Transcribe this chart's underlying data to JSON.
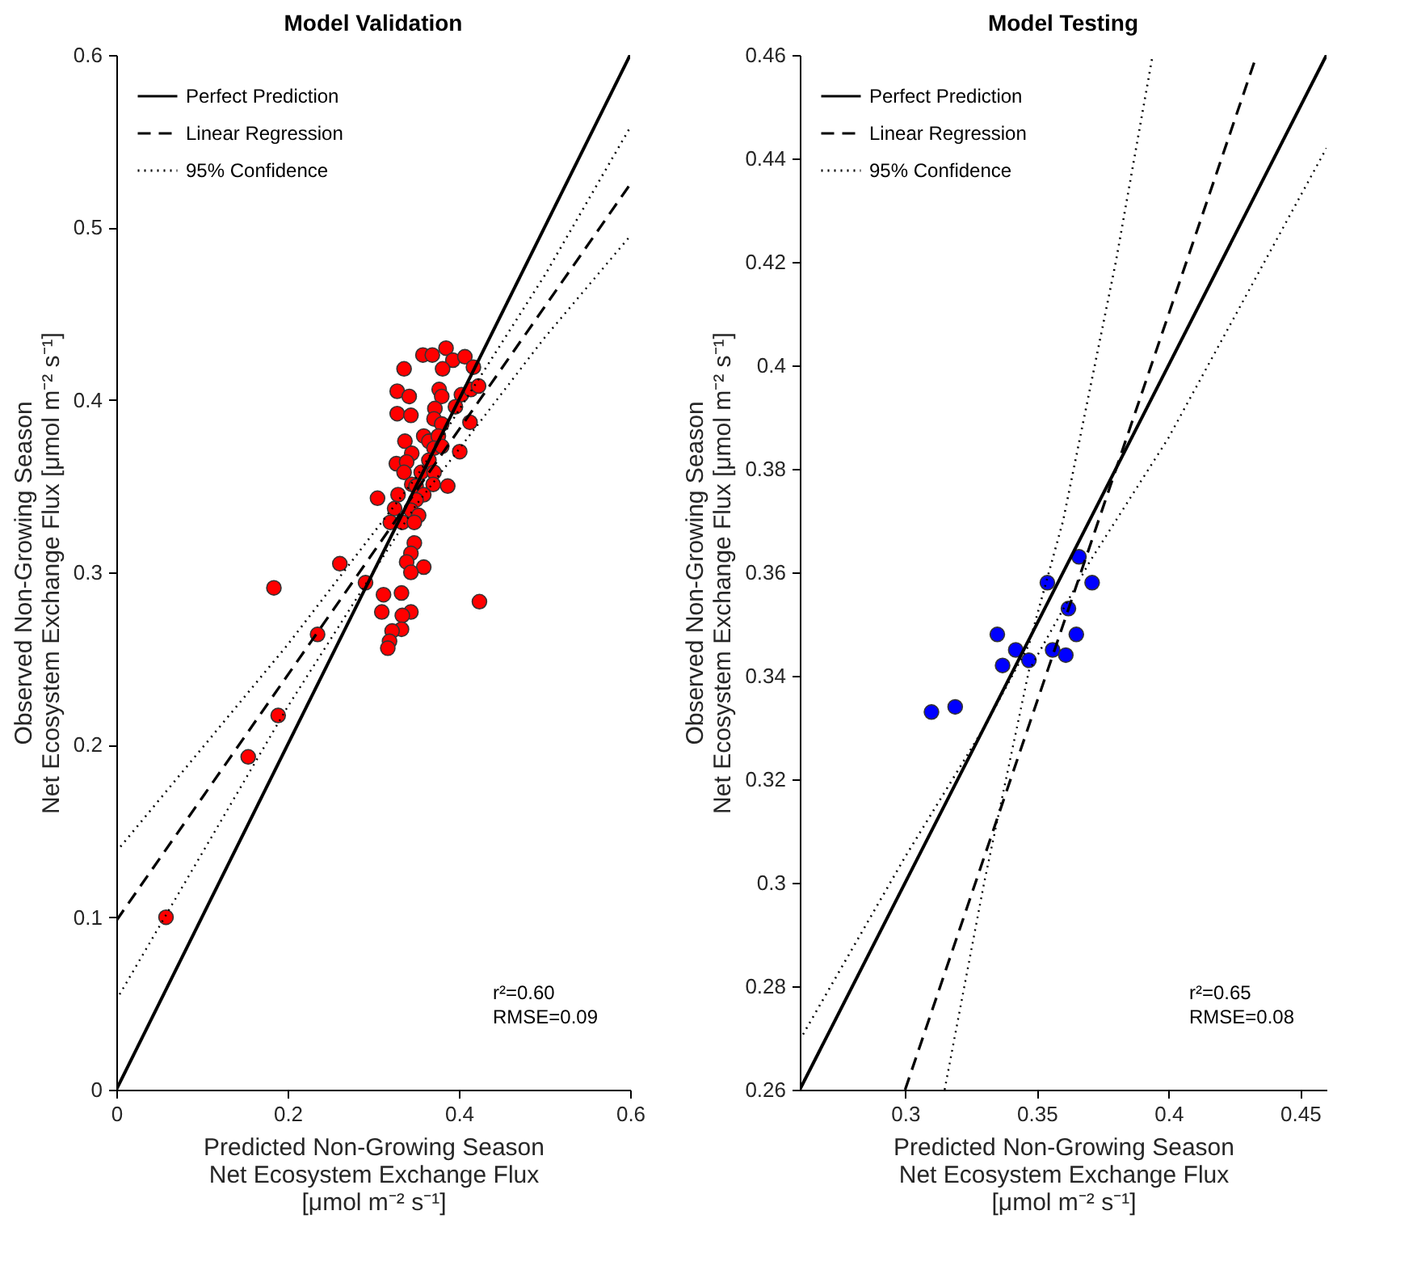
{
  "chart_data": [
    {
      "type": "scatter",
      "title": "Model Validation",
      "xlabel": "Predicted Non-Growing Season\nNet Ecosystem Exchange Flux\n[μmol m⁻² s⁻¹]",
      "ylabel": "Observed Non-Growing Season\nNet Ecosystem Exchange Flux [μmol m⁻² s⁻¹]",
      "xlim": [
        0,
        0.6
      ],
      "ylim": [
        0,
        0.6
      ],
      "xticks": [
        0,
        0.2,
        0.4,
        0.6
      ],
      "yticks": [
        0,
        0.1,
        0.2,
        0.3,
        0.4,
        0.5,
        0.6
      ],
      "legend": "top left",
      "annotations": [
        "r²=0.60",
        "RMSE=0.09"
      ],
      "series": [
        {
          "marker": "circle",
          "color": "#ff0000",
          "x": [
            0.358,
            0.369,
            0.385,
            0.393,
            0.407,
            0.381,
            0.336,
            0.417,
            0.328,
            0.342,
            0.377,
            0.38,
            0.403,
            0.414,
            0.423,
            0.328,
            0.344,
            0.372,
            0.396,
            0.371,
            0.38,
            0.413,
            0.337,
            0.359,
            0.365,
            0.376,
            0.371,
            0.38,
            0.345,
            0.401,
            0.327,
            0.339,
            0.336,
            0.365,
            0.356,
            0.371,
            0.345,
            0.35,
            0.37,
            0.387,
            0.359,
            0.305,
            0.329,
            0.35,
            0.325,
            0.344,
            0.353,
            0.32,
            0.334,
            0.348,
            0.348,
            0.344,
            0.339,
            0.359,
            0.344,
            0.261,
            0.291,
            0.312,
            0.333,
            0.31,
            0.344,
            0.334,
            0.424,
            0.333,
            0.322,
            0.319,
            0.317,
            0.184,
            0.235,
            0.189,
            0.154,
            0.058
          ],
          "values": [
            0.426,
            0.426,
            0.43,
            0.423,
            0.425,
            0.418,
            0.418,
            0.419,
            0.405,
            0.402,
            0.406,
            0.402,
            0.403,
            0.406,
            0.408,
            0.392,
            0.391,
            0.395,
            0.396,
            0.389,
            0.386,
            0.387,
            0.376,
            0.379,
            0.376,
            0.379,
            0.372,
            0.373,
            0.369,
            0.37,
            0.363,
            0.364,
            0.358,
            0.365,
            0.358,
            0.358,
            0.351,
            0.35,
            0.351,
            0.35,
            0.345,
            0.343,
            0.345,
            0.342,
            0.337,
            0.336,
            0.333,
            0.329,
            0.329,
            0.329,
            0.317,
            0.311,
            0.306,
            0.303,
            0.3,
            0.305,
            0.294,
            0.287,
            0.288,
            0.277,
            0.277,
            0.275,
            0.283,
            0.267,
            0.266,
            0.26,
            0.256,
            0.291,
            0.264,
            0.217,
            0.193,
            0.1
          ]
        },
        {
          "type": "line",
          "name": "Perfect Prediction",
          "color": "#000000",
          "line_style": "solid",
          "x": [
            0,
            0.6
          ],
          "values": [
            0,
            0.6
          ]
        },
        {
          "type": "line",
          "name": "Linear Regression",
          "color": "#000000",
          "line_style": "dashed",
          "x": [
            0,
            0.6
          ],
          "values": [
            0.098,
            0.525
          ]
        },
        {
          "type": "line",
          "name": "95% Confidence",
          "color": "#000000",
          "line_style": "dotted",
          "x": [
            0,
            0.2,
            0.35,
            0.5,
            0.6
          ],
          "values": [
            0.138,
            0.258,
            0.355,
            0.472,
            0.558
          ]
        },
        {
          "type": "line",
          "color": "#000000",
          "line_style": "dotted",
          "x": [
            0,
            0.2,
            0.35,
            0.5,
            0.6
          ],
          "values": [
            0.052,
            0.222,
            0.339,
            0.436,
            0.495
          ]
        }
      ]
    },
    {
      "type": "scatter",
      "title": "Model Testing",
      "xlabel": "Predicted Non-Growing Season\nNet Ecosystem Exchange Flux\n[μmol m⁻² s⁻¹]",
      "ylabel": "Observed Non-Growing Season\nNet Ecosystem Exchange Flux [μmol m⁻² s⁻¹]",
      "xlim": [
        0.26,
        0.46
      ],
      "ylim": [
        0.26,
        0.46
      ],
      "xticks": [
        0.3,
        0.35,
        0.4,
        0.45
      ],
      "yticks": [
        0.26,
        0.28,
        0.3,
        0.32,
        0.34,
        0.36,
        0.38,
        0.4,
        0.42,
        0.44,
        0.46
      ],
      "legend": "top left",
      "annotations": [
        "r²=0.65",
        "RMSE=0.08"
      ],
      "series": [
        {
          "marker": "circle",
          "color": "#0000ff",
          "x": [
            0.366,
            0.354,
            0.371,
            0.362,
            0.335,
            0.365,
            0.342,
            0.356,
            0.361,
            0.347,
            0.337,
            0.31,
            0.319
          ],
          "values": [
            0.363,
            0.358,
            0.358,
            0.353,
            0.348,
            0.348,
            0.345,
            0.345,
            0.344,
            0.343,
            0.342,
            0.333,
            0.334
          ]
        },
        {
          "type": "line",
          "name": "Perfect Prediction",
          "color": "#000000",
          "line_style": "solid",
          "x": [
            0.26,
            0.46
          ],
          "values": [
            0.26,
            0.46
          ]
        },
        {
          "type": "line",
          "name": "Linear Regression",
          "color": "#000000",
          "line_style": "dashed",
          "x": [
            0.3,
            0.4335
          ],
          "values": [
            0.26,
            0.46
          ]
        },
        {
          "type": "line",
          "name": "95% Confidence",
          "color": "#000000",
          "line_style": "dotted",
          "x": [
            0.26,
            0.3,
            0.33,
            0.347,
            0.36,
            0.38,
            0.394
          ],
          "values": [
            0.2696,
            0.305,
            0.33,
            0.346,
            0.37,
            0.42,
            0.46
          ]
        },
        {
          "type": "line",
          "color": "#000000",
          "line_style": "dotted",
          "x": [
            0.315,
            0.33,
            0.347,
            0.37,
            0.4,
            0.46
          ],
          "values": [
            0.26,
            0.3,
            0.341,
            0.362,
            0.386,
            0.442
          ]
        }
      ]
    }
  ]
}
